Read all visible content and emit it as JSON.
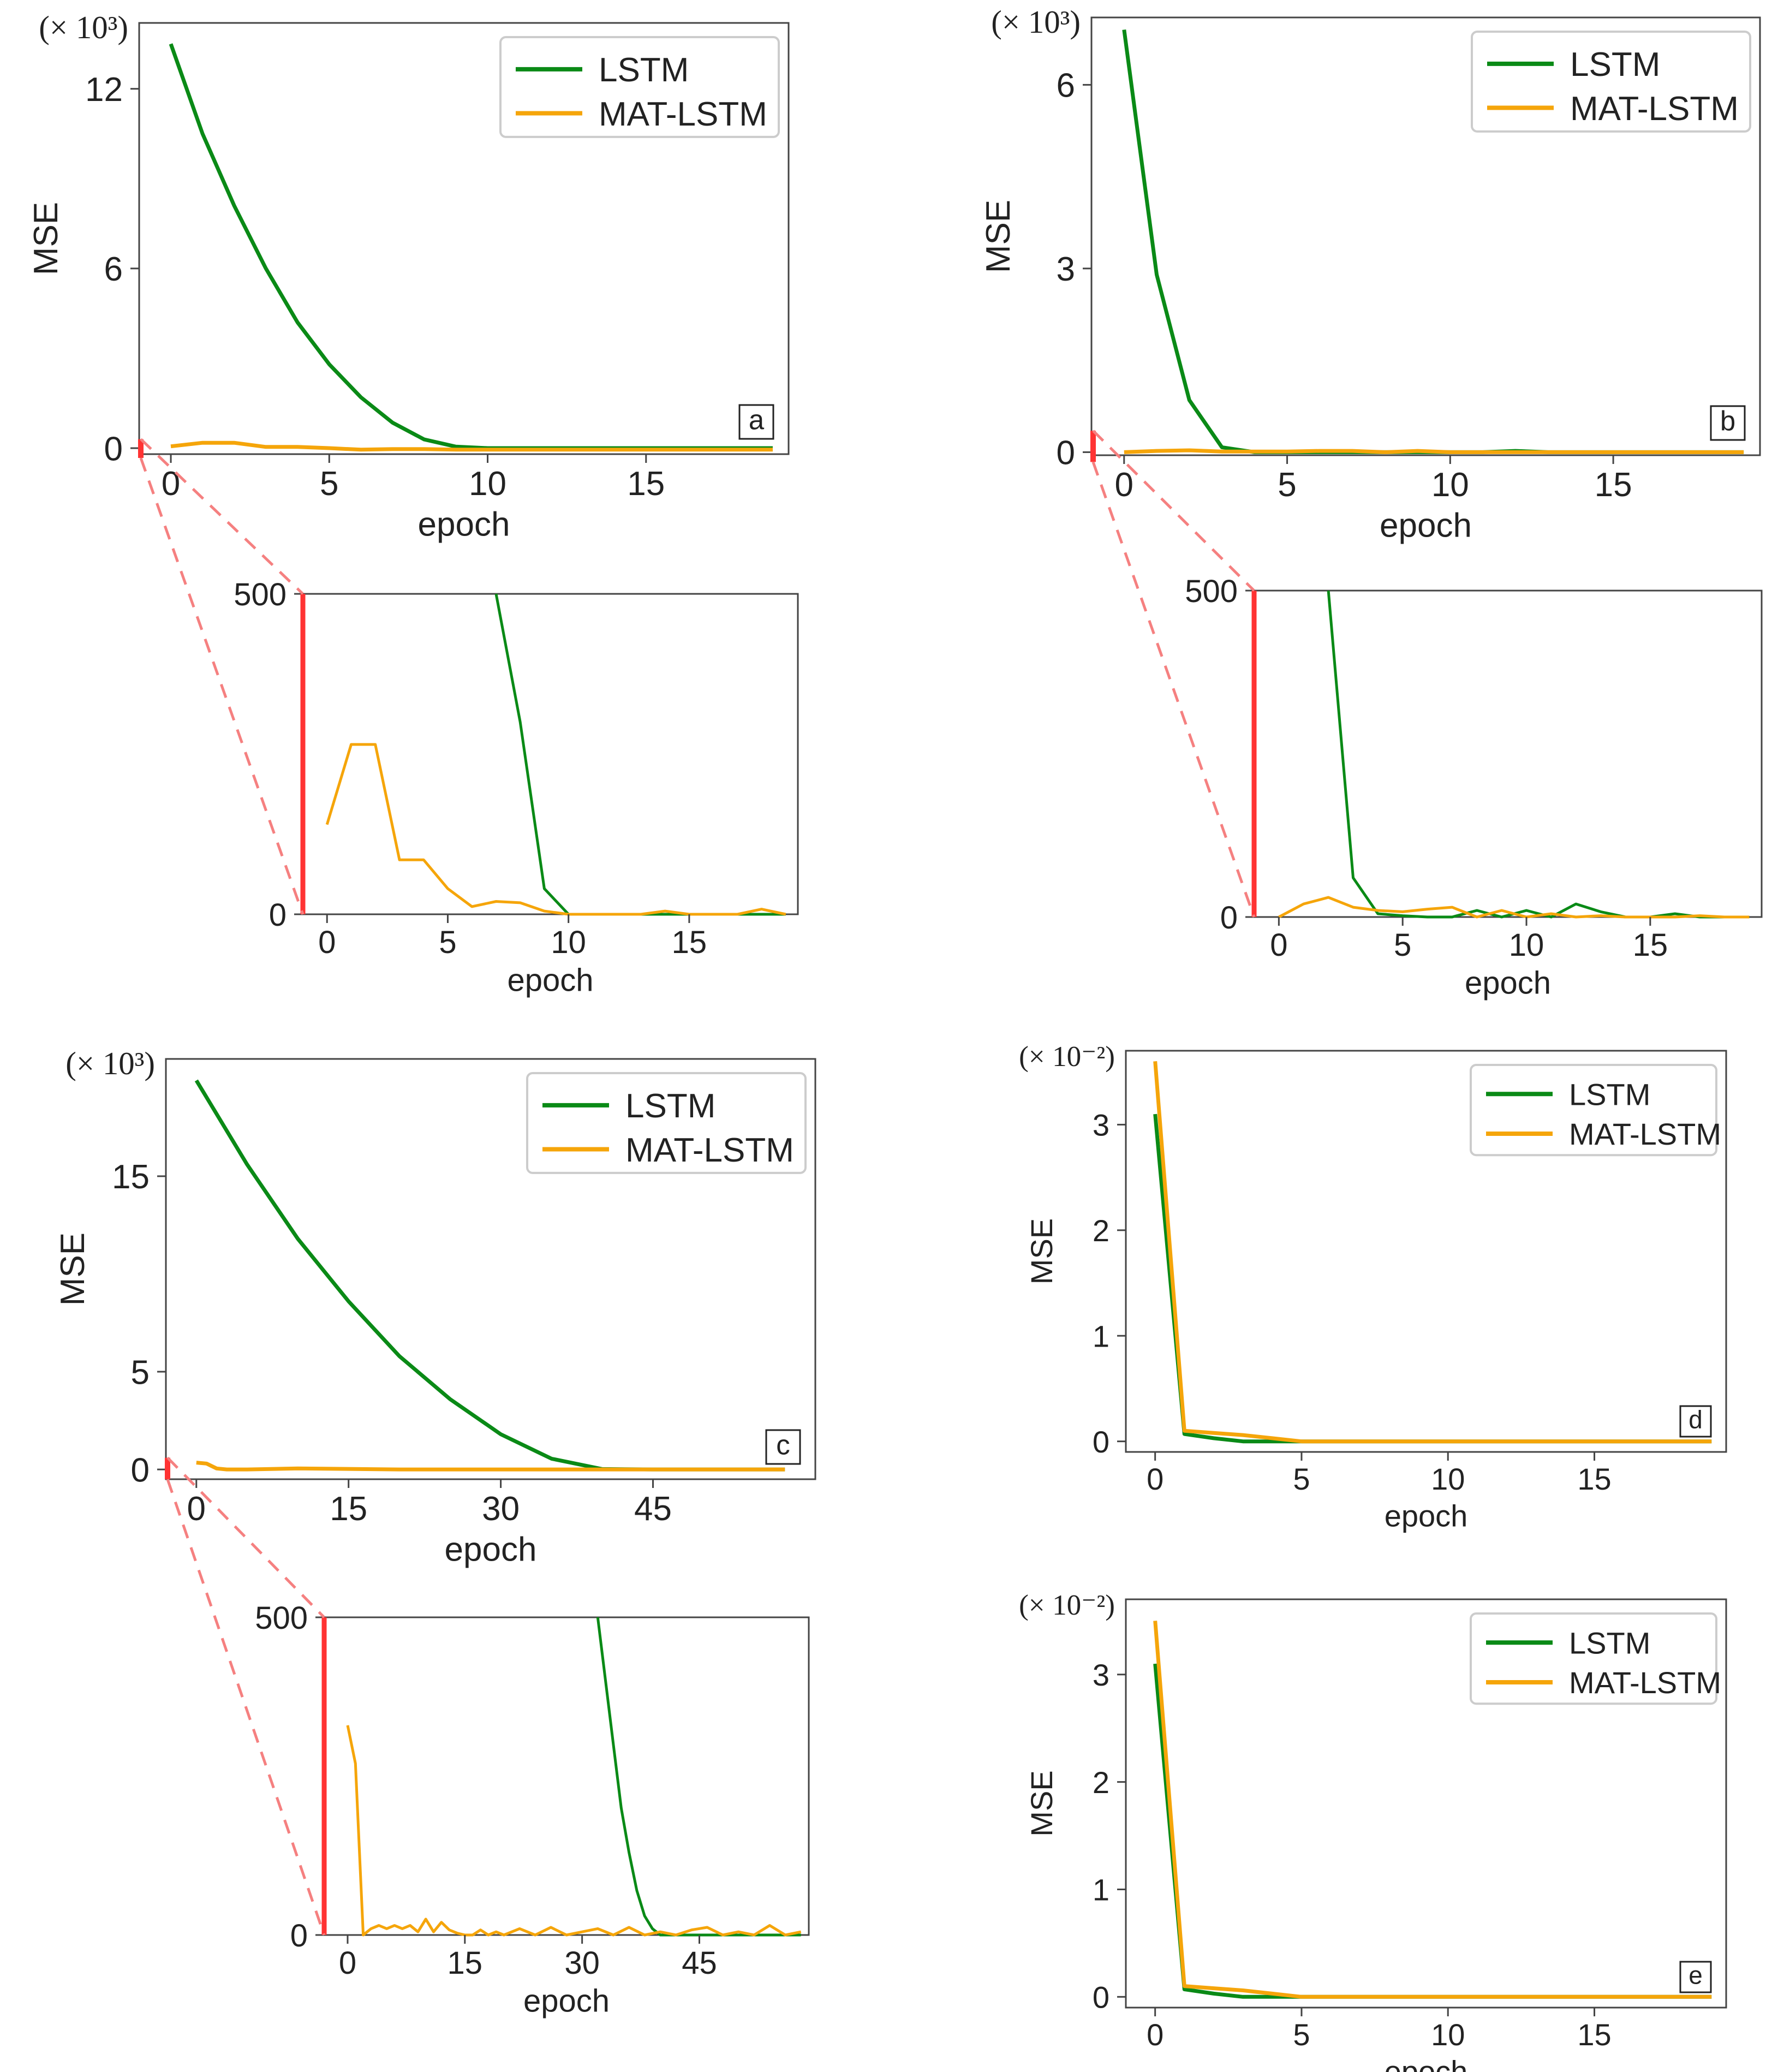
{
  "figure": {
    "colors": {
      "lstm": "#0a8a16",
      "mat": "#f5a50a",
      "zoom": "#ff3333",
      "zoom_dashed": "#f58080"
    }
  },
  "chart_data": [
    {
      "id": "a",
      "type": "line",
      "panel_label": "a",
      "xlabel": "epoch",
      "ylabel": "MSE",
      "scale_label": "(× 10³)",
      "xlim": [
        -1,
        19.5
      ],
      "ylim": [
        -0.2,
        14.2
      ],
      "xticks": [
        0,
        5,
        10,
        15
      ],
      "yticks": [
        0,
        6,
        12
      ],
      "legend": [
        "LSTM",
        "MAT-LSTM"
      ],
      "legend_loc": "top-right",
      "x": [
        0,
        1,
        2,
        3,
        4,
        5,
        6,
        7,
        8,
        9,
        10,
        11,
        12,
        13,
        14,
        15,
        16,
        17,
        18,
        19
      ],
      "series": [
        {
          "name": "LSTM",
          "values": [
            13.5,
            10.5,
            8.1,
            6.0,
            4.2,
            2.8,
            1.7,
            0.85,
            0.29,
            0.05,
            0.0,
            0.0,
            0.0,
            0.0,
            0.0,
            0.0,
            0.0,
            0.0,
            0.0,
            0.0
          ]
        },
        {
          "name": "MAT-LSTM",
          "values": [
            0.06,
            0.18,
            0.18,
            0.04,
            0.04,
            0.0,
            -0.05,
            -0.03,
            -0.03,
            -0.05,
            -0.05,
            -0.05,
            -0.05,
            -0.05,
            -0.05,
            -0.05,
            -0.05,
            -0.05,
            -0.05,
            -0.05
          ]
        }
      ]
    },
    {
      "id": "a-zoom",
      "type": "line",
      "xlabel": "epoch",
      "ylabel": "",
      "xlim": [
        -1,
        19.5
      ],
      "ylim": [
        0,
        500
      ],
      "xticks": [
        0,
        5,
        10,
        15
      ],
      "yticks": [
        0,
        500
      ],
      "x": [
        0,
        1,
        2,
        3,
        4,
        5,
        6,
        7,
        8,
        9,
        10,
        11,
        12,
        13,
        14,
        15,
        16,
        17,
        18,
        19
      ],
      "series": [
        {
          "name": "LSTM",
          "values": [
            null,
            null,
            null,
            null,
            null,
            null,
            null,
            500,
            300,
            40,
            0,
            0,
            0,
            0,
            0,
            0,
            0,
            0,
            0,
            0
          ]
        },
        {
          "name": "MAT-LSTM",
          "values": [
            140,
            265,
            265,
            85,
            85,
            40,
            12,
            20,
            18,
            5,
            0,
            0,
            0,
            0,
            5,
            0,
            0,
            0,
            8,
            0
          ]
        }
      ]
    },
    {
      "id": "b",
      "type": "line",
      "panel_label": "b",
      "xlabel": "epoch",
      "ylabel": "MSE",
      "scale_label": "(× 10³)",
      "xlim": [
        -1,
        19.5
      ],
      "ylim": [
        -0.05,
        7.1
      ],
      "xticks": [
        0,
        5,
        10,
        15
      ],
      "yticks": [
        0,
        3,
        6
      ],
      "legend": [
        "LSTM",
        "MAT-LSTM"
      ],
      "legend_loc": "top-right",
      "x": [
        0,
        1,
        2,
        3,
        4,
        5,
        6,
        7,
        8,
        9,
        10,
        11,
        12,
        13,
        14,
        15,
        16,
        17,
        18,
        19
      ],
      "series": [
        {
          "name": "LSTM",
          "values": [
            6.9,
            2.9,
            0.85,
            0.08,
            0.0,
            0.0,
            0.0,
            0.0,
            0.0,
            0.0,
            0.0,
            0.0,
            0.02,
            0.0,
            0.0,
            0.0,
            0.0,
            0.0,
            0.0,
            0.0
          ]
        },
        {
          "name": "MAT-LSTM",
          "values": [
            0.0,
            0.02,
            0.03,
            0.01,
            0.01,
            0.01,
            0.02,
            0.02,
            0.0,
            0.02,
            0.0,
            0.0,
            0.0,
            0.0,
            0.0,
            0.0,
            0.0,
            0.0,
            0.0,
            0.0
          ]
        }
      ]
    },
    {
      "id": "b-zoom",
      "type": "line",
      "xlabel": "epoch",
      "ylabel": "",
      "xlim": [
        -1,
        19.5
      ],
      "ylim": [
        0,
        500
      ],
      "xticks": [
        0,
        5,
        10,
        15
      ],
      "yticks": [
        0,
        500
      ],
      "x": [
        0,
        1,
        2,
        3,
        4,
        5,
        6,
        7,
        8,
        9,
        10,
        11,
        12,
        13,
        14,
        15,
        16,
        17,
        18,
        19
      ],
      "series": [
        {
          "name": "LSTM",
          "values": [
            null,
            null,
            500,
            60,
            5,
            2,
            0,
            0,
            10,
            0,
            10,
            0,
            20,
            8,
            0,
            0,
            5,
            0,
            0,
            0
          ]
        },
        {
          "name": "MAT-LSTM",
          "values": [
            0,
            20,
            30,
            15,
            10,
            8,
            12,
            15,
            0,
            10,
            0,
            5,
            0,
            2,
            0,
            0,
            0,
            2,
            0,
            0
          ]
        }
      ]
    },
    {
      "id": "c",
      "type": "line",
      "panel_label": "c",
      "xlabel": "epoch",
      "ylabel": "MSE",
      "scale_label": "(× 10³)",
      "xlim": [
        -3,
        61
      ],
      "ylim": [
        -0.5,
        21
      ],
      "xticks": [
        0,
        15,
        30,
        45
      ],
      "yticks": [
        0,
        5,
        15
      ],
      "legend": [
        "LSTM",
        "MAT-LSTM"
      ],
      "legend_loc": "top-right",
      "x": [
        0,
        5,
        10,
        15,
        20,
        25,
        30,
        35,
        40,
        45,
        50,
        55,
        58
      ],
      "series": [
        {
          "name": "LSTM",
          "values": [
            19.9,
            15.6,
            11.8,
            8.6,
            5.8,
            3.6,
            1.8,
            0.55,
            0.02,
            0.0,
            0.0,
            0.0,
            0.0
          ]
        }
      ],
      "series_extra": {
        "name": "MAT-LSTM",
        "x": [
          0,
          1,
          2,
          3,
          5,
          10,
          20,
          30,
          40,
          50,
          58
        ],
        "values": [
          0.35,
          0.3,
          0.05,
          0.0,
          0.0,
          0.05,
          0.0,
          0.0,
          0.0,
          0.0,
          0.0
        ]
      }
    },
    {
      "id": "c-zoom",
      "type": "line",
      "xlabel": "epoch",
      "ylabel": "",
      "xlim": [
        -3,
        59
      ],
      "ylim": [
        0,
        500
      ],
      "xticks": [
        0,
        15,
        30,
        45
      ],
      "yticks": [
        0,
        500
      ],
      "series": [
        {
          "name": "LSTM",
          "x": [
            32,
            33,
            34,
            35,
            36,
            37,
            38,
            39,
            40,
            45,
            50,
            55,
            58
          ],
          "values": [
            500,
            400,
            300,
            200,
            130,
            70,
            30,
            10,
            0,
            0,
            0,
            0,
            0
          ]
        },
        {
          "name": "MAT-LSTM",
          "x": [
            0,
            1,
            2,
            3,
            4,
            5,
            6,
            7,
            8,
            9,
            10,
            11,
            12,
            13,
            14,
            15,
            16,
            17,
            18,
            19,
            20,
            22,
            24,
            26,
            28,
            30,
            32,
            34,
            36,
            38,
            40,
            42,
            44,
            46,
            48,
            50,
            52,
            54,
            56,
            58
          ],
          "values": [
            330,
            270,
            0,
            10,
            15,
            10,
            15,
            10,
            15,
            5,
            25,
            5,
            20,
            8,
            3,
            0,
            0,
            8,
            0,
            5,
            0,
            10,
            0,
            12,
            0,
            5,
            10,
            0,
            12,
            0,
            5,
            0,
            8,
            12,
            0,
            5,
            0,
            15,
            0,
            5
          ]
        }
      ]
    },
    {
      "id": "d",
      "type": "line",
      "panel_label": "d",
      "xlabel": "epoch",
      "ylabel": "MSE",
      "scale_label": "(× 10⁻²)",
      "xlim": [
        -1,
        19.5
      ],
      "ylim": [
        -0.1,
        3.7
      ],
      "xticks": [
        0,
        5,
        10,
        15
      ],
      "yticks": [
        0,
        1,
        2,
        3
      ],
      "legend": [
        "LSTM",
        "MAT-LSTM"
      ],
      "legend_loc": "top-right",
      "x": [
        0,
        1,
        2,
        3,
        4,
        5,
        6,
        7,
        8,
        9,
        10,
        11,
        12,
        13,
        14,
        15,
        16,
        17,
        18,
        19
      ],
      "series": [
        {
          "name": "LSTM",
          "values": [
            3.1,
            0.07,
            0.03,
            0.0,
            0.0,
            0.0,
            0.0,
            0.0,
            0.0,
            0.0,
            0.0,
            0.0,
            0.0,
            0.0,
            0.0,
            0.0,
            0.0,
            0.0,
            0.0,
            0.0
          ]
        },
        {
          "name": "MAT-LSTM",
          "values": [
            3.6,
            0.1,
            0.08,
            0.06,
            0.03,
            0.0,
            0.0,
            0.0,
            0.0,
            0.0,
            0.0,
            0.0,
            0.0,
            0.0,
            0.0,
            0.0,
            0.0,
            0.0,
            0.0,
            0.0
          ]
        }
      ]
    },
    {
      "id": "e",
      "type": "line",
      "panel_label": "e",
      "xlabel": "epoch",
      "ylabel": "MSE",
      "scale_label": "(× 10⁻²)",
      "xlim": [
        -1,
        19.5
      ],
      "ylim": [
        -0.1,
        3.7
      ],
      "xticks": [
        0,
        5,
        10,
        15
      ],
      "yticks": [
        0,
        1,
        2,
        3
      ],
      "legend": [
        "LSTM",
        "MAT-LSTM"
      ],
      "legend_loc": "top-right",
      "x": [
        0,
        1,
        2,
        3,
        4,
        5,
        6,
        7,
        8,
        9,
        10,
        11,
        12,
        13,
        14,
        15,
        16,
        17,
        18,
        19
      ],
      "series": [
        {
          "name": "LSTM",
          "values": [
            3.1,
            0.07,
            0.03,
            0.0,
            0.0,
            0.0,
            0.0,
            0.0,
            0.0,
            0.0,
            0.0,
            0.0,
            0.0,
            0.0,
            0.0,
            0.0,
            0.0,
            0.0,
            0.0,
            0.0
          ]
        },
        {
          "name": "MAT-LSTM",
          "values": [
            3.5,
            0.1,
            0.08,
            0.06,
            0.03,
            0.0,
            0.0,
            0.0,
            0.0,
            0.0,
            0.0,
            0.0,
            0.0,
            0.0,
            0.0,
            0.0,
            0.0,
            0.0,
            0.0,
            0.0
          ]
        }
      ]
    }
  ]
}
